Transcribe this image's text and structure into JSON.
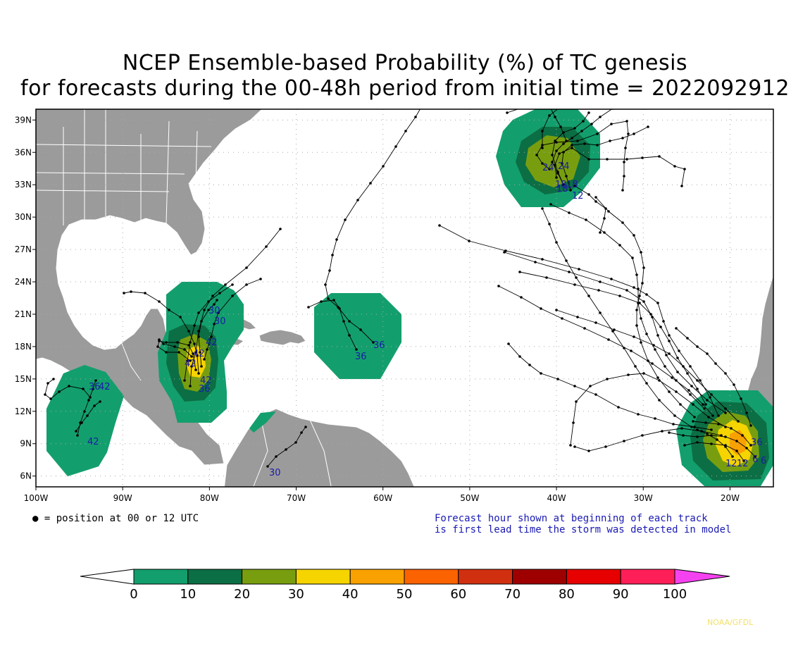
{
  "title": {
    "line1": "NCEP Ensemble-based Probability (%) of TC genesis",
    "line2": "for forecasts during the 00-48h period from initial time = 2022092912"
  },
  "map": {
    "lon_range": [
      -100,
      -15
    ],
    "lat_range": [
      5,
      40
    ],
    "lon_ticks": [
      "100W",
      "90W",
      "80W",
      "70W",
      "60W",
      "50W",
      "40W",
      "30W",
      "20W"
    ],
    "lat_ticks": [
      "6N",
      "9N",
      "12N",
      "15N",
      "18N",
      "21N",
      "24N",
      "27N",
      "30N",
      "33N",
      "36N",
      "39N"
    ],
    "grid": "dotted",
    "land_color": "#9b9b9b",
    "ocean_color": "#ffffff"
  },
  "legend_note": "● = position at 00 or 12 UTC",
  "forecast_note": {
    "line1": "Forecast hour shown at beginning of each track",
    "line2": "is first lead time the storm was detected in model"
  },
  "colorbar": {
    "labels": [
      "0",
      "10",
      "20",
      "30",
      "40",
      "50",
      "60",
      "70",
      "80",
      "90",
      "100"
    ],
    "colors": [
      "#139f6d",
      "#0c6e44",
      "#789e10",
      "#f5d400",
      "#f9a100",
      "#fb6200",
      "#d13010",
      "#9e0000",
      "#e60000",
      "#fe1e58"
    ],
    "extend_low_color": "#ffffff",
    "extend_high_color": "#f542f0"
  },
  "genesis_areas": [
    {
      "name": "western-caribbean",
      "max_probability_bin": "30-40",
      "labels": [
        "30",
        "30",
        "42",
        "42",
        "42",
        "36",
        "42"
      ]
    },
    {
      "name": "central-america-pacific",
      "max_probability_bin": "0-10",
      "labels": [
        "36",
        "42",
        "42"
      ]
    },
    {
      "name": "north-of-hispaniola",
      "max_probability_bin": "0-10",
      "labels": [
        "36",
        "36"
      ]
    },
    {
      "name": "central-atlantic-north",
      "max_probability_bin": "20-30",
      "labels": [
        "24",
        "24",
        "18",
        "18",
        "12",
        "18"
      ]
    },
    {
      "name": "cabo-verde",
      "max_probability_bin": "30-40",
      "labels": [
        "36",
        "12",
        "12",
        "6",
        "6"
      ]
    },
    {
      "name": "colombia",
      "max_probability_bin": "0-10",
      "labels": [
        "30"
      ]
    }
  ],
  "credit": "NOAA/GFDL"
}
